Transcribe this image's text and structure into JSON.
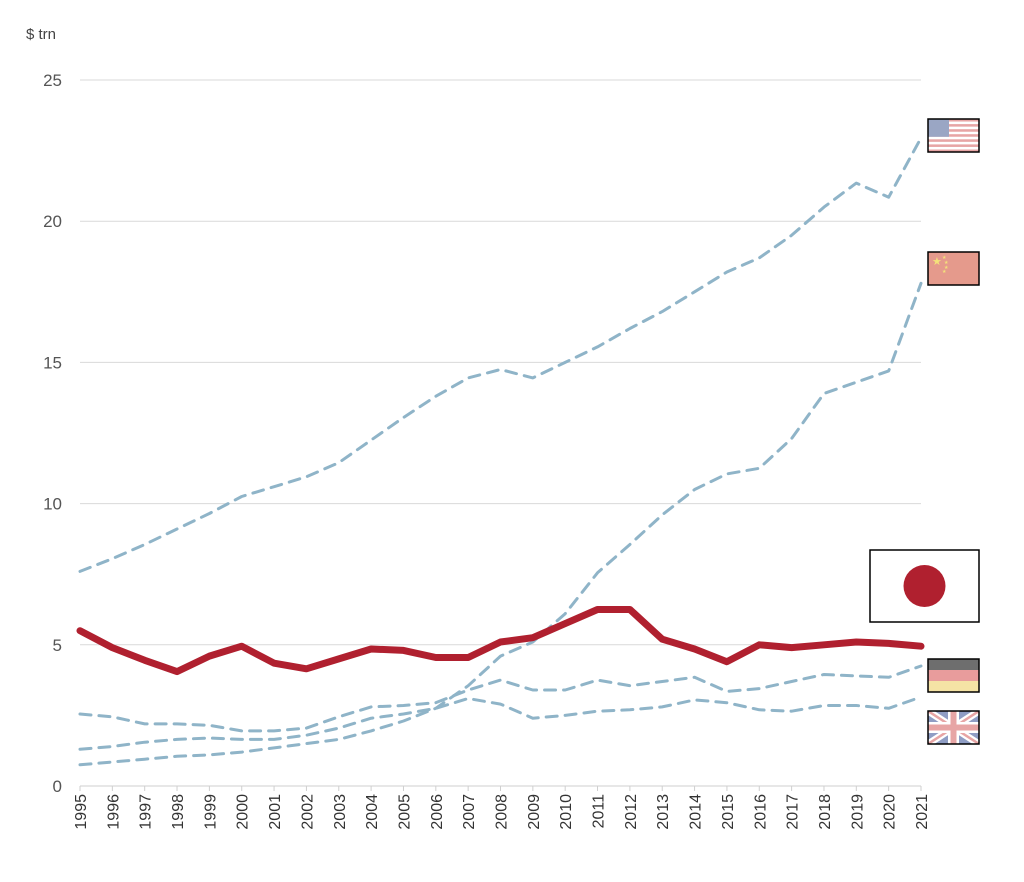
{
  "chart_data": {
    "type": "line",
    "title": "",
    "ylabel": "$ trn",
    "xlabel": "",
    "ylim": [
      0,
      25
    ],
    "yticks": [
      0,
      5,
      10,
      15,
      20,
      25
    ],
    "grid": true,
    "x": [
      "1995",
      "1996",
      "1997",
      "1998",
      "1999",
      "2000",
      "2001",
      "2002",
      "2003",
      "2004",
      "2005",
      "2006",
      "2007",
      "2008",
      "2009",
      "2010",
      "2011",
      "2012",
      "2013",
      "2014",
      "2015",
      "2016",
      "2017",
      "2018",
      "2019",
      "2020",
      "2021"
    ],
    "series": [
      {
        "flag": "japan",
        "style": "solid",
        "color": "#b0202f",
        "values": [
          5.5,
          4.9,
          4.45,
          4.05,
          4.6,
          4.95,
          4.35,
          4.15,
          4.5,
          4.85,
          4.8,
          4.55,
          4.55,
          5.1,
          5.25,
          5.75,
          6.25,
          6.25,
          5.2,
          4.85,
          4.4,
          5.0,
          4.9,
          5.0,
          5.1,
          5.05,
          4.95
        ]
      },
      {
        "flag": "usa",
        "style": "dashed",
        "color": "#8fb4c8",
        "values": [
          7.6,
          8.05,
          8.55,
          9.1,
          9.65,
          10.25,
          10.6,
          10.95,
          11.45,
          12.25,
          13.05,
          13.8,
          14.45,
          14.75,
          14.45,
          15.0,
          15.55,
          16.2,
          16.8,
          17.5,
          18.2,
          18.7,
          19.5,
          20.5,
          21.35,
          20.85,
          22.95
        ]
      },
      {
        "flag": "china",
        "style": "dashed",
        "color": "#8fb4c8",
        "values": [
          0.75,
          0.85,
          0.95,
          1.05,
          1.1,
          1.2,
          1.35,
          1.5,
          1.65,
          1.95,
          2.3,
          2.75,
          3.55,
          4.6,
          5.1,
          6.1,
          7.55,
          8.55,
          9.6,
          10.5,
          11.05,
          11.25,
          12.3,
          13.9,
          14.3,
          14.7,
          17.8
        ]
      },
      {
        "flag": "germany",
        "style": "dashed",
        "color": "#8fb4c8",
        "values": [
          2.55,
          2.45,
          2.2,
          2.2,
          2.15,
          1.95,
          1.95,
          2.05,
          2.45,
          2.8,
          2.85,
          2.95,
          3.4,
          3.75,
          3.4,
          3.4,
          3.75,
          3.55,
          3.7,
          3.85,
          3.35,
          3.45,
          3.7,
          3.95,
          3.9,
          3.85,
          4.25
        ]
      },
      {
        "flag": "uk",
        "style": "dashed",
        "color": "#8fb4c8",
        "values": [
          1.3,
          1.4,
          1.55,
          1.65,
          1.7,
          1.65,
          1.65,
          1.8,
          2.05,
          2.4,
          2.55,
          2.75,
          3.1,
          2.9,
          2.4,
          2.5,
          2.65,
          2.7,
          2.8,
          3.05,
          2.95,
          2.7,
          2.65,
          2.85,
          2.85,
          2.75,
          3.15
        ]
      }
    ],
    "flags": [
      {
        "country": "usa",
        "icon": "usa-flag-icon"
      },
      {
        "country": "china",
        "icon": "china-flag-icon"
      },
      {
        "country": "japan",
        "icon": "japan-flag-icon"
      },
      {
        "country": "germany",
        "icon": "germany-flag-icon"
      },
      {
        "country": "uk",
        "icon": "uk-flag-icon"
      }
    ]
  }
}
